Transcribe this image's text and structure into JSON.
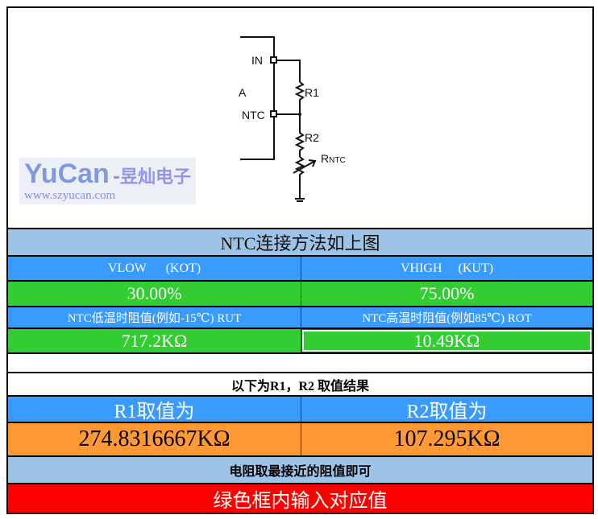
{
  "diagram": {
    "label_in": "IN",
    "label_ntc": "NTC",
    "label_a": "A",
    "label_r1": "R1",
    "label_r2": "R2",
    "label_rntc": "R",
    "label_rntc_sub": "NTC"
  },
  "title": "NTC连接方法如上图",
  "vlow_label": "VLOW      (KOT)",
  "vhigh_label": "VHIGH     (KUT)",
  "vlow_value": "30.00%",
  "vhigh_value": "75.00%",
  "rut_label": "NTC低温时阻值(例如-15℃) RUT",
  "rot_label": "NTC高温时阻值(例如85℃) ROT",
  "rut_value": "717.2KΩ",
  "rot_value": "10.49KΩ",
  "result_heading": "以下为R1，R2 取值结果",
  "r1_label": "R1取值为",
  "r2_label": "R2取值为",
  "r1_value": "274.8316667KΩ",
  "r2_value": "107.295KΩ",
  "note": "电阻取最接近的阻值即可",
  "instruction": "绿色框内输入对应值",
  "watermark": {
    "brand": "YuCan",
    "name": "-昱灿电子",
    "url": "www.szyucan.com"
  },
  "colors": {
    "light_blue": "#9DC3E6",
    "blue": "#3A9BFF",
    "green": "#33CC33",
    "orange": "#FF9933",
    "red": "#FF0000"
  }
}
